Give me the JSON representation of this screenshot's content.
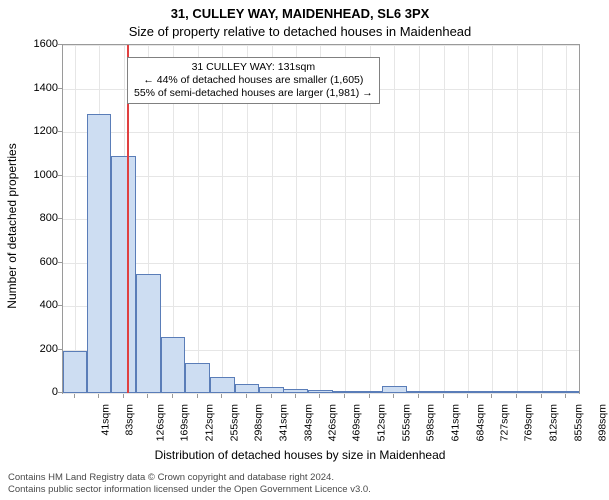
{
  "titles": {
    "super": "31, CULLEY WAY, MAIDENHEAD, SL6 3PX",
    "sub": "Size of property relative to detached houses in Maidenhead",
    "x_axis": "Distribution of detached houses by size in Maidenhead",
    "y_axis": "Number of detached properties"
  },
  "callout": {
    "line1": "31 CULLEY WAY: 131sqm",
    "line2": "← 44% of detached houses are smaller (1,605)",
    "line3": "55% of semi-detached houses are larger (1,981) →"
  },
  "chart": {
    "type": "histogram",
    "x_domain": [
      20,
      920
    ],
    "y_domain": [
      0,
      1600
    ],
    "y_ticks": [
      0,
      200,
      400,
      600,
      800,
      1000,
      1200,
      1400,
      1600
    ],
    "x_ticks": [
      41,
      83,
      126,
      169,
      212,
      255,
      298,
      341,
      384,
      426,
      469,
      512,
      555,
      598,
      641,
      684,
      727,
      769,
      812,
      855,
      898
    ],
    "x_tick_suffix": "sqm",
    "bar_width_units": 43,
    "bar_color": "#cdddf2",
    "bar_border_color": "#5a7db8",
    "grid_color": "#e6e6e6",
    "axis_color": "#9a9a9a",
    "marker_value": 131,
    "marker_color": "#e04040",
    "bars": [
      {
        "x": 41,
        "y": 195
      },
      {
        "x": 83,
        "y": 1285
      },
      {
        "x": 126,
        "y": 1090
      },
      {
        "x": 169,
        "y": 548
      },
      {
        "x": 212,
        "y": 258
      },
      {
        "x": 255,
        "y": 140
      },
      {
        "x": 298,
        "y": 73
      },
      {
        "x": 341,
        "y": 40
      },
      {
        "x": 384,
        "y": 27
      },
      {
        "x": 426,
        "y": 17
      },
      {
        "x": 469,
        "y": 13
      },
      {
        "x": 512,
        "y": 10
      },
      {
        "x": 555,
        "y": 7
      },
      {
        "x": 598,
        "y": 30
      },
      {
        "x": 641,
        "y": 4
      },
      {
        "x": 684,
        "y": 3
      },
      {
        "x": 727,
        "y": 2
      },
      {
        "x": 769,
        "y": 2
      },
      {
        "x": 812,
        "y": 2
      },
      {
        "x": 855,
        "y": 2
      },
      {
        "x": 898,
        "y": 2
      }
    ]
  },
  "footer": {
    "line1": "Contains HM Land Registry data © Crown copyright and database right 2024.",
    "line2": "Contains public sector information licensed under the Open Government Licence v3.0."
  },
  "style": {
    "background": "#ffffff",
    "title_fontsize": 13,
    "axis_label_fontsize": 12,
    "tick_fontsize": 11,
    "footer_fontsize": 9.5,
    "callout_fontsize": 10.5
  }
}
